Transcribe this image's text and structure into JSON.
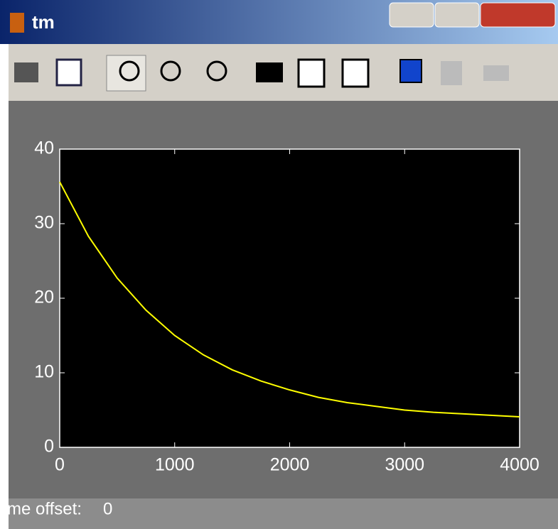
{
  "window": {
    "title": "tm"
  },
  "status": {
    "label": "me offset:",
    "value": "0"
  },
  "chart_data": {
    "type": "line",
    "x": [
      0,
      250,
      500,
      750,
      1000,
      1250,
      1500,
      1750,
      2000,
      2250,
      2500,
      2750,
      3000,
      3250,
      3500,
      3750,
      4000
    ],
    "series": [
      {
        "color": "#ffff00",
        "values": [
          35.6,
          28.3,
          22.7,
          18.4,
          15.0,
          12.4,
          10.4,
          8.9,
          7.7,
          6.7,
          6.0,
          5.5,
          5.0,
          4.7,
          4.5,
          4.3,
          4.1
        ]
      }
    ],
    "xlim": [
      0,
      4000
    ],
    "xticks": [
      0,
      1000,
      2000,
      3000,
      4000
    ],
    "ylim": [
      0,
      40
    ],
    "yticks": [
      0,
      10,
      20,
      30,
      40
    ],
    "grid": false,
    "axes_color": "#ffffff",
    "background": "#000000"
  }
}
